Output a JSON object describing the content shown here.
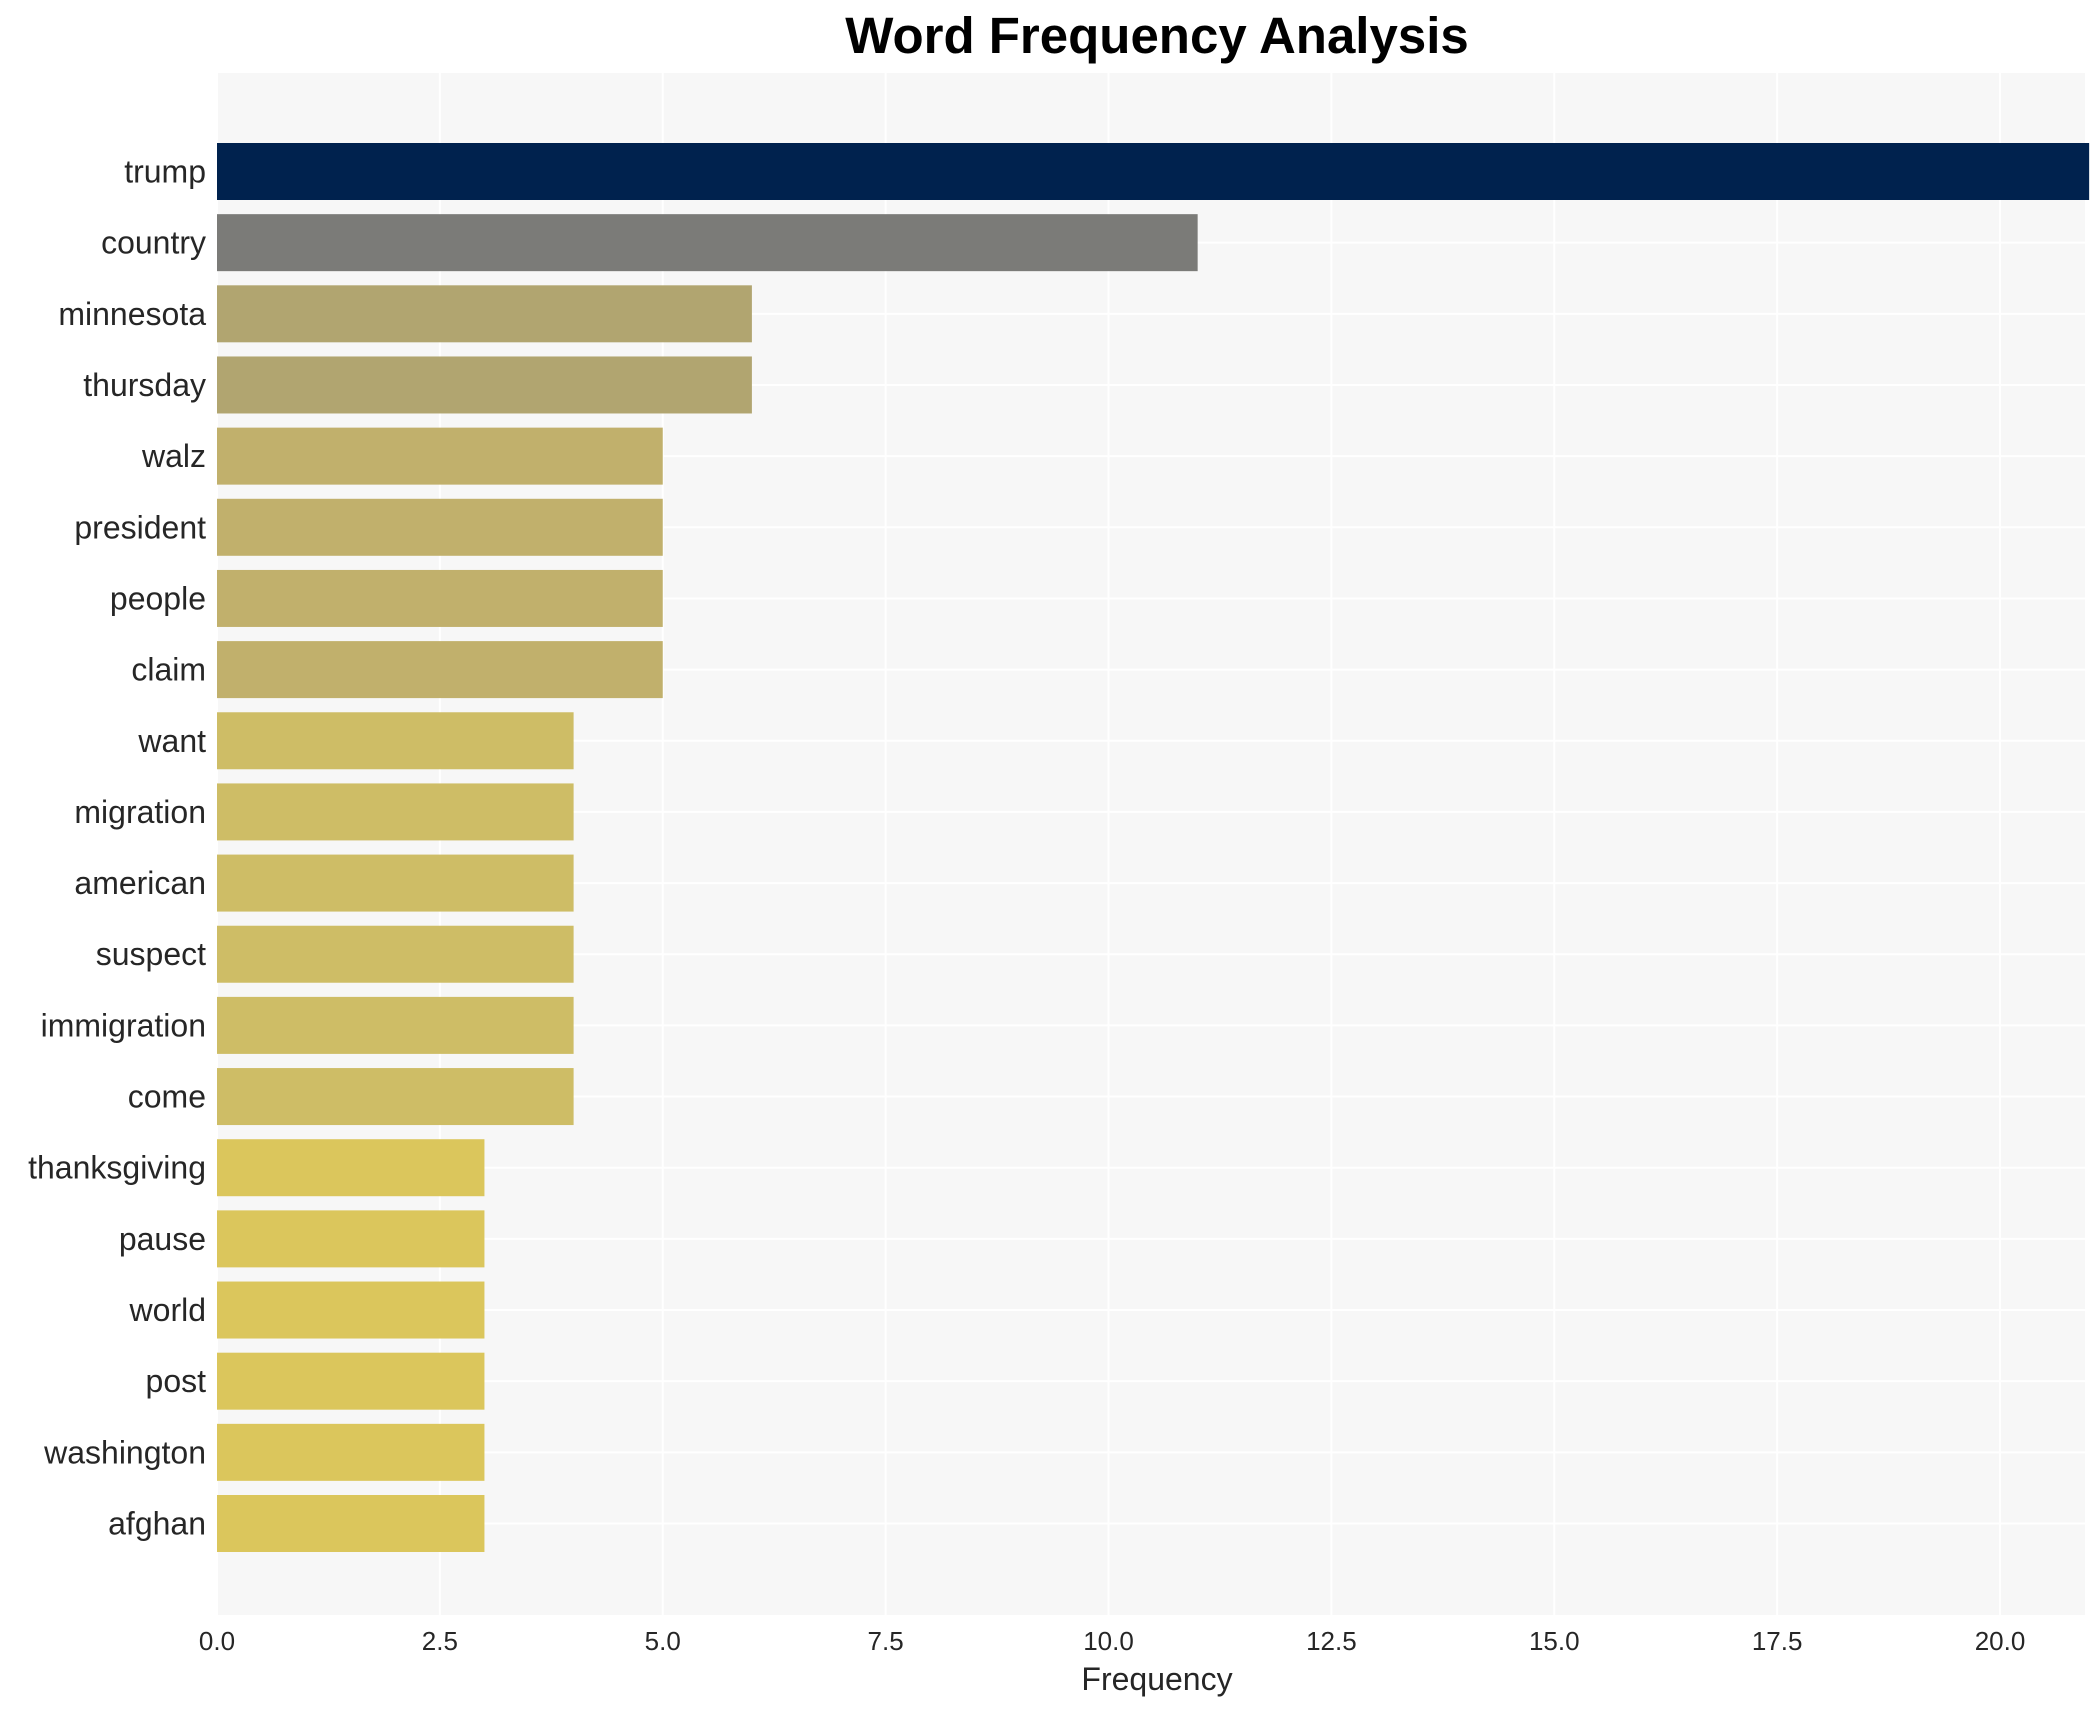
{
  "chart_data": {
    "type": "bar",
    "orientation": "horizontal",
    "title": "Word Frequency Analysis",
    "xlabel": "Frequency",
    "ylabel": "",
    "xlim": [
      0,
      22
    ],
    "xticks": [
      0,
      2.5,
      5,
      7.5,
      10,
      12.5,
      15,
      17.5,
      20
    ],
    "xtick_labels": [
      "0.0",
      "2.5",
      "5.0",
      "7.5",
      "10.0",
      "12.5",
      "15.0",
      "17.5",
      "20.0"
    ],
    "grid": true,
    "legend": "none",
    "categories": [
      "trump",
      "country",
      "minnesota",
      "thursday",
      "walz",
      "president",
      "people",
      "claim",
      "want",
      "migration",
      "american",
      "suspect",
      "immigration",
      "come",
      "thanksgiving",
      "pause",
      "world",
      "post",
      "washington",
      "afghan"
    ],
    "values": [
      21,
      11,
      6,
      6,
      5,
      5,
      5,
      5,
      4,
      4,
      4,
      4,
      4,
      4,
      3,
      3,
      3,
      3,
      3,
      3
    ],
    "colors": [
      "#00224e",
      "#7b7b78",
      "#b1a570",
      "#b1a570",
      "#c1b06c",
      "#c1b06c",
      "#c1b06c",
      "#c1b06c",
      "#cebd66",
      "#cebd66",
      "#cebd66",
      "#cebd66",
      "#cebd66",
      "#cebd66",
      "#dbc65c",
      "#dbc65c",
      "#dbc65c",
      "#dbc65c",
      "#dbc65c",
      "#dbc65c"
    ]
  }
}
